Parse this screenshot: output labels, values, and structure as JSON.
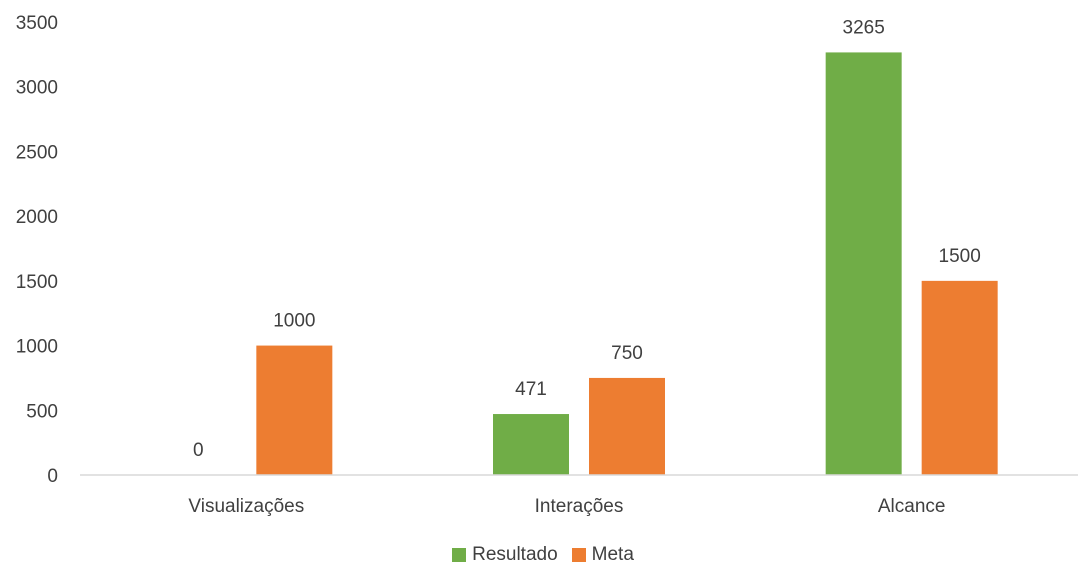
{
  "chart_data": {
    "type": "bar",
    "categories": [
      "Visualizações",
      "Interações",
      "Alcance"
    ],
    "series": [
      {
        "name": "Resultado",
        "values": [
          0,
          471,
          3265
        ],
        "color": "#70AD47"
      },
      {
        "name": "Meta",
        "values": [
          1000,
          750,
          1500
        ],
        "color": "#ED7D31"
      }
    ],
    "ylim": [
      0,
      3500
    ],
    "yticks": [
      0,
      500,
      1000,
      1500,
      2000,
      2500,
      3000,
      3500
    ],
    "grid": false,
    "legend": "bottom",
    "title": "",
    "xlabel": "",
    "ylabel": ""
  }
}
